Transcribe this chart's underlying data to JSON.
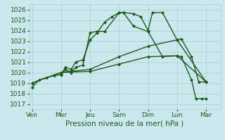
{
  "title": "Pression niveau de la mer( hPa )",
  "bg_color": "#cce8ee",
  "grid_color": "#aacccc",
  "line_color": "#1a5c1a",
  "ylim": [
    1016.5,
    1026.5
  ],
  "yticks": [
    1017,
    1018,
    1019,
    1020,
    1021,
    1022,
    1023,
    1024,
    1025,
    1026
  ],
  "tick_fontsize": 6.5,
  "xlabel_fontsize": 7.5,
  "xtick_labels": [
    "Ven",
    "Mer",
    "Jeu",
    "Sam",
    "Dim",
    "Lun",
    "Mar"
  ],
  "xtick_positions": [
    0,
    2,
    4,
    6,
    8,
    10,
    12
  ],
  "xlim": [
    -0.2,
    13.0
  ],
  "lines": [
    {
      "x": [
        0,
        0.5,
        1,
        1.5,
        2,
        2.3,
        2.7,
        3,
        3.5,
        4,
        4.5,
        5,
        5.5,
        6,
        6.3,
        7,
        7.5,
        8,
        8.3,
        9,
        10,
        10.3,
        11,
        11.5,
        12
      ],
      "y": [
        1018.6,
        1019.3,
        1019.5,
        1019.7,
        1019.8,
        1020.5,
        1020.3,
        1021.0,
        1021.2,
        1023.1,
        1023.8,
        1024.8,
        1025.3,
        1025.7,
        1025.7,
        1025.6,
        1025.3,
        1024.0,
        1025.7,
        1025.7,
        1023.1,
        1023.2,
        1021.5,
        1019.1,
        1019.1
      ],
      "marker": "D",
      "markersize": 2.0,
      "linewidth": 1.0
    },
    {
      "x": [
        2,
        2.3,
        2.7,
        3,
        3.5,
        4,
        4.5,
        5,
        6,
        6.3,
        7,
        8,
        9,
        10,
        10.3,
        11,
        11.3,
        11.7,
        12
      ],
      "y": [
        1019.8,
        1020.3,
        1020.0,
        1020.5,
        1020.7,
        1023.8,
        1023.9,
        1023.9,
        1025.7,
        1025.7,
        1024.4,
        1023.9,
        1021.5,
        1021.6,
        1021.5,
        1019.3,
        1017.5,
        1017.5,
        1017.5
      ],
      "marker": "D",
      "markersize": 2.0,
      "linewidth": 1.0
    },
    {
      "x": [
        0,
        2,
        4,
        6,
        8,
        10,
        12
      ],
      "y": [
        1019.0,
        1020.0,
        1020.3,
        1021.5,
        1022.5,
        1023.1,
        1019.1
      ],
      "marker": "D",
      "markersize": 2.0,
      "linewidth": 1.0
    },
    {
      "x": [
        0,
        2,
        4,
        6,
        8,
        10,
        12
      ],
      "y": [
        1019.0,
        1020.0,
        1020.1,
        1020.8,
        1021.5,
        1021.6,
        1019.1
      ],
      "marker": "D",
      "markersize": 2.0,
      "linewidth": 1.0
    }
  ]
}
